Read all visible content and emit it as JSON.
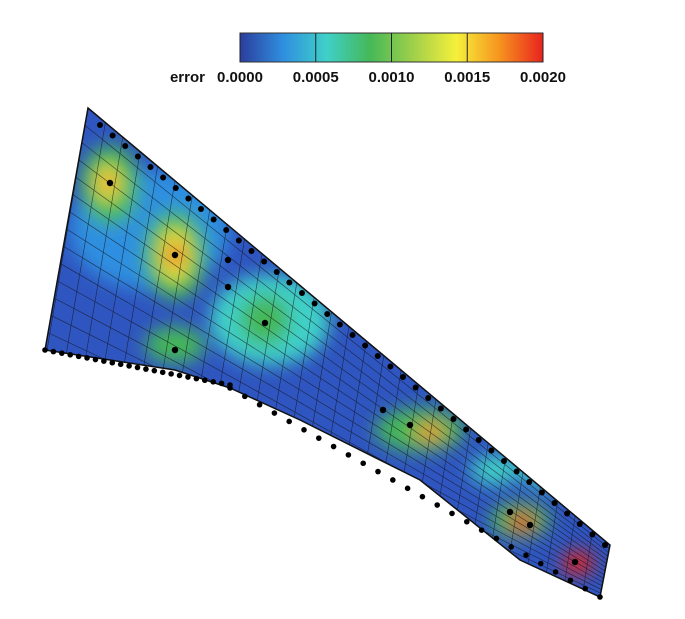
{
  "chart_data": {
    "type": "contour",
    "colorbar_label": "error",
    "zlim": [
      0,
      0.002
    ],
    "zticks": [
      {
        "value": 0,
        "label": "0.0000"
      },
      {
        "value": 0.0005,
        "label": "0.0005"
      },
      {
        "value": 0.001,
        "label": "0.0010"
      },
      {
        "value": 0.0015,
        "label": "0.0015"
      },
      {
        "value": 0.002,
        "label": "0.0020"
      }
    ],
    "colors": [
      "#2b3d9c",
      "#2f8fe0",
      "#3fd0c8",
      "#45b858",
      "#9fd04a",
      "#f5f03a",
      "#f7931e",
      "#e8231f"
    ]
  }
}
